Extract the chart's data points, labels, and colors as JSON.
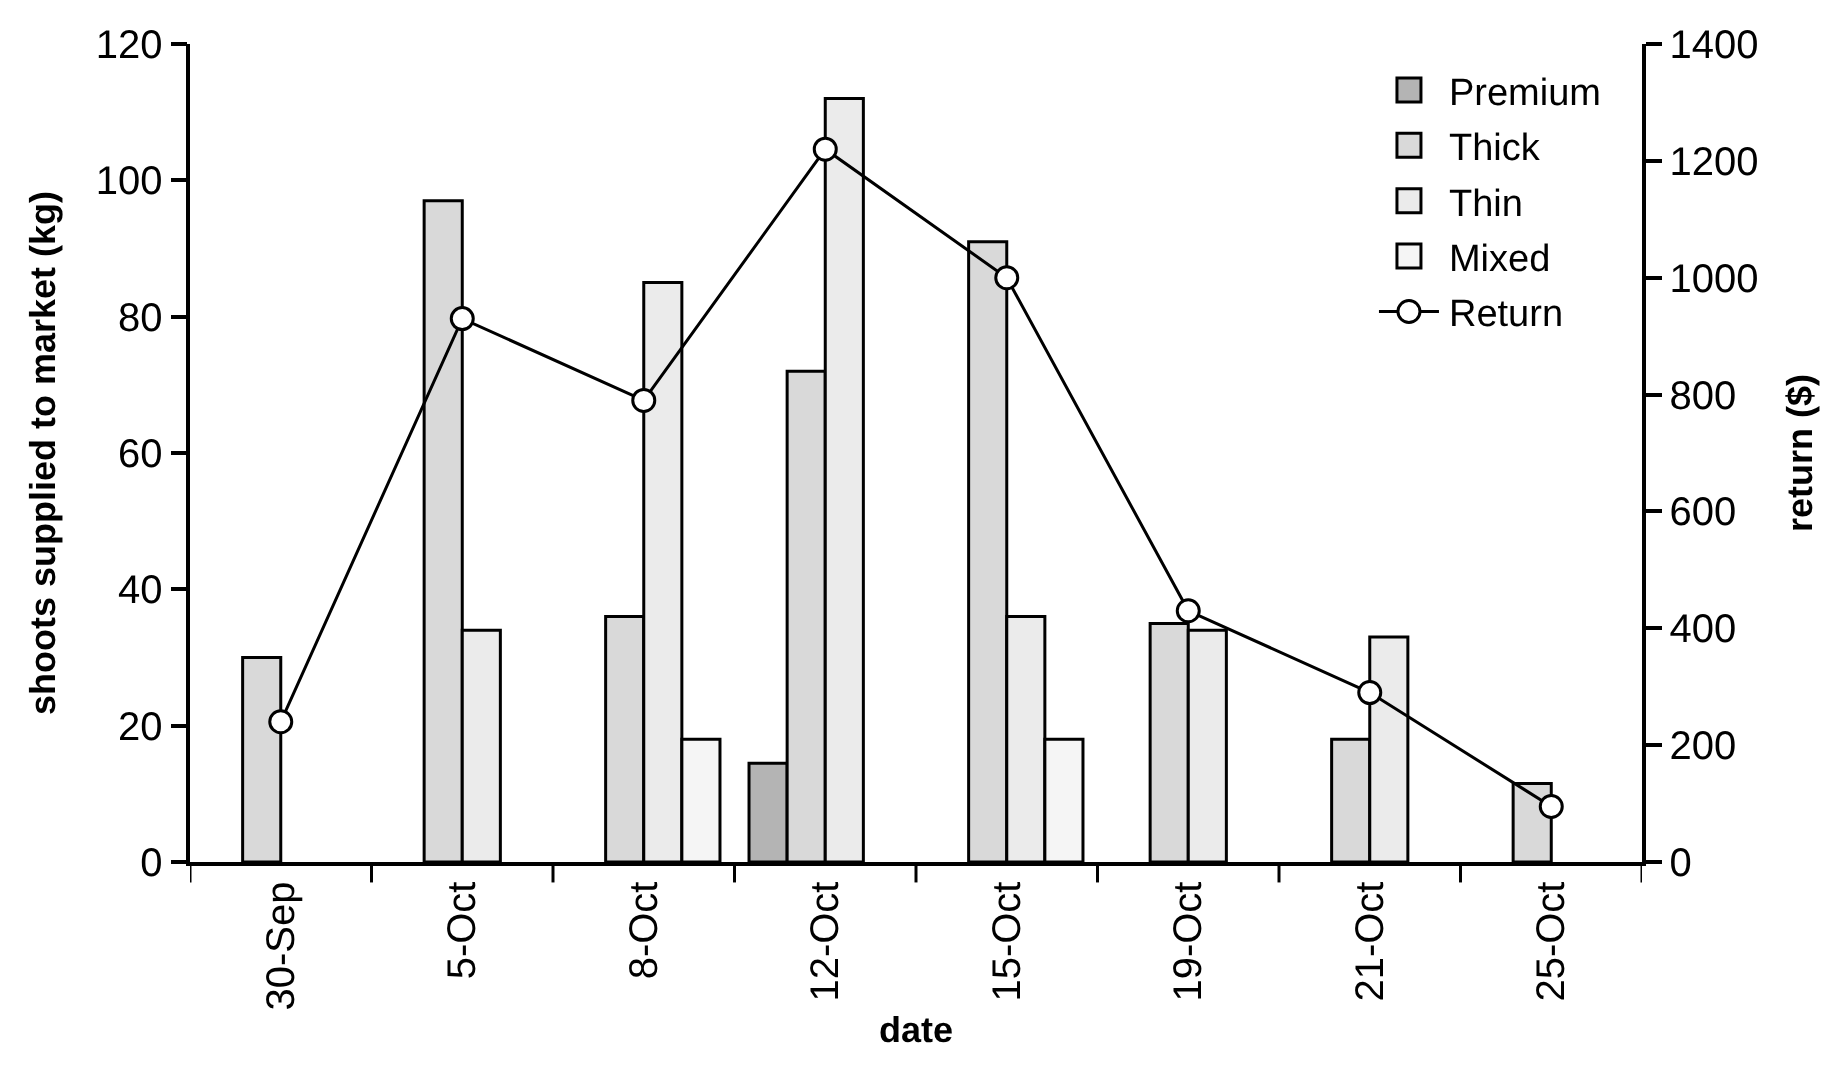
{
  "chart_data": {
    "type": "bar",
    "xlabel": "date",
    "ylabel": "shoots supplied to market (kg)",
    "y2label": "return ($)",
    "categories": [
      "30-Sep",
      "5-Oct",
      "8-Oct",
      "12-Oct",
      "15-Oct",
      "19-Oct",
      "21-Oct",
      "25-Oct"
    ],
    "series": [
      {
        "name": "Premium",
        "color": "#b4b4b4",
        "values": [
          null,
          null,
          null,
          14.5,
          null,
          null,
          null,
          null
        ]
      },
      {
        "name": "Thick",
        "color": "#d9d9d9",
        "values": [
          30,
          97,
          36,
          72,
          91,
          35,
          18,
          11.5
        ]
      },
      {
        "name": "Thin",
        "color": "#ebebeb",
        "values": [
          null,
          34,
          85,
          112,
          36,
          34,
          33,
          null
        ]
      },
      {
        "name": "Mixed",
        "color": "#f5f5f5",
        "values": [
          null,
          null,
          18,
          null,
          18,
          null,
          null,
          null
        ]
      },
      {
        "name": "Return",
        "type": "line",
        "axis": "y2",
        "color": "#000000",
        "marker": "circle",
        "values": [
          240,
          930,
          790,
          1220,
          1000,
          430,
          290,
          95
        ]
      }
    ],
    "ylim": [
      0,
      120
    ],
    "yticks": [
      0,
      20,
      40,
      60,
      80,
      100,
      120
    ],
    "y2lim": [
      0,
      1400
    ],
    "y2ticks": [
      0,
      200,
      400,
      600,
      800,
      1000,
      1200,
      1400
    ],
    "grid": false,
    "legend": "top right"
  }
}
